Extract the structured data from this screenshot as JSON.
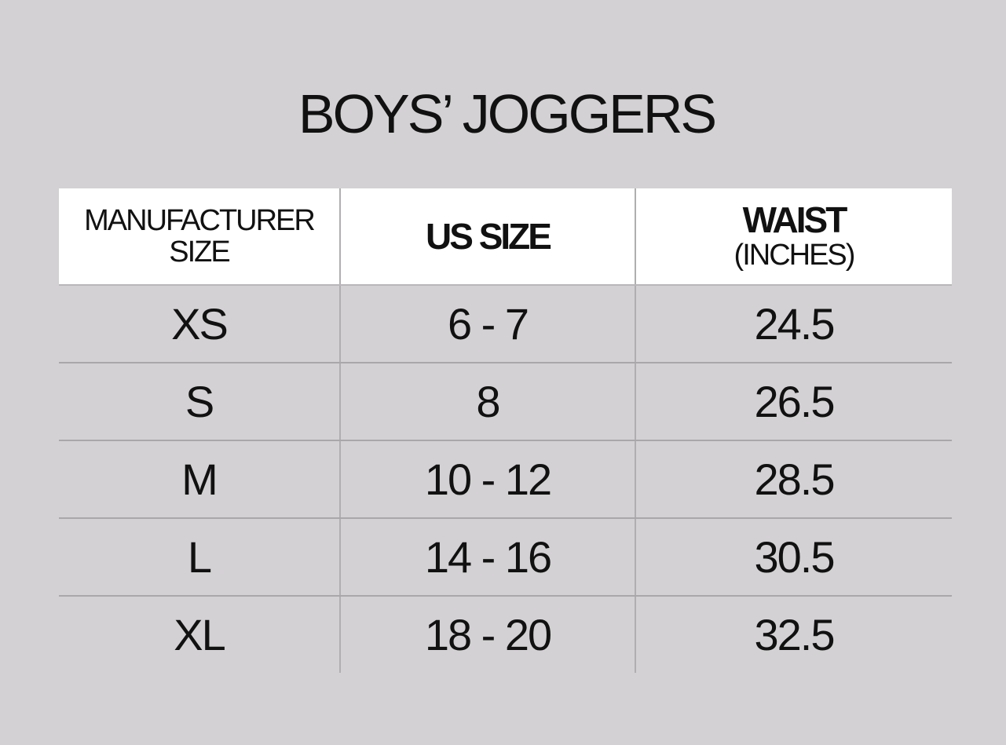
{
  "title": "BOYS’ JOGGERS",
  "headers": {
    "manufacturer": [
      "MANUFACTURER",
      "SIZE"
    ],
    "us_size": "US SIZE",
    "waist": "WAIST",
    "waist_unit": "(INCHES)"
  },
  "rows": [
    {
      "mfr": "XS",
      "us": "6 - 7",
      "waist": "24.5"
    },
    {
      "mfr": "S",
      "us": "8",
      "waist": "26.5"
    },
    {
      "mfr": "M",
      "us": "10 - 12",
      "waist": "28.5"
    },
    {
      "mfr": "L",
      "us": "14 - 16",
      "waist": "30.5"
    },
    {
      "mfr": "XL",
      "us": "18 - 20",
      "waist": "32.5"
    }
  ]
}
